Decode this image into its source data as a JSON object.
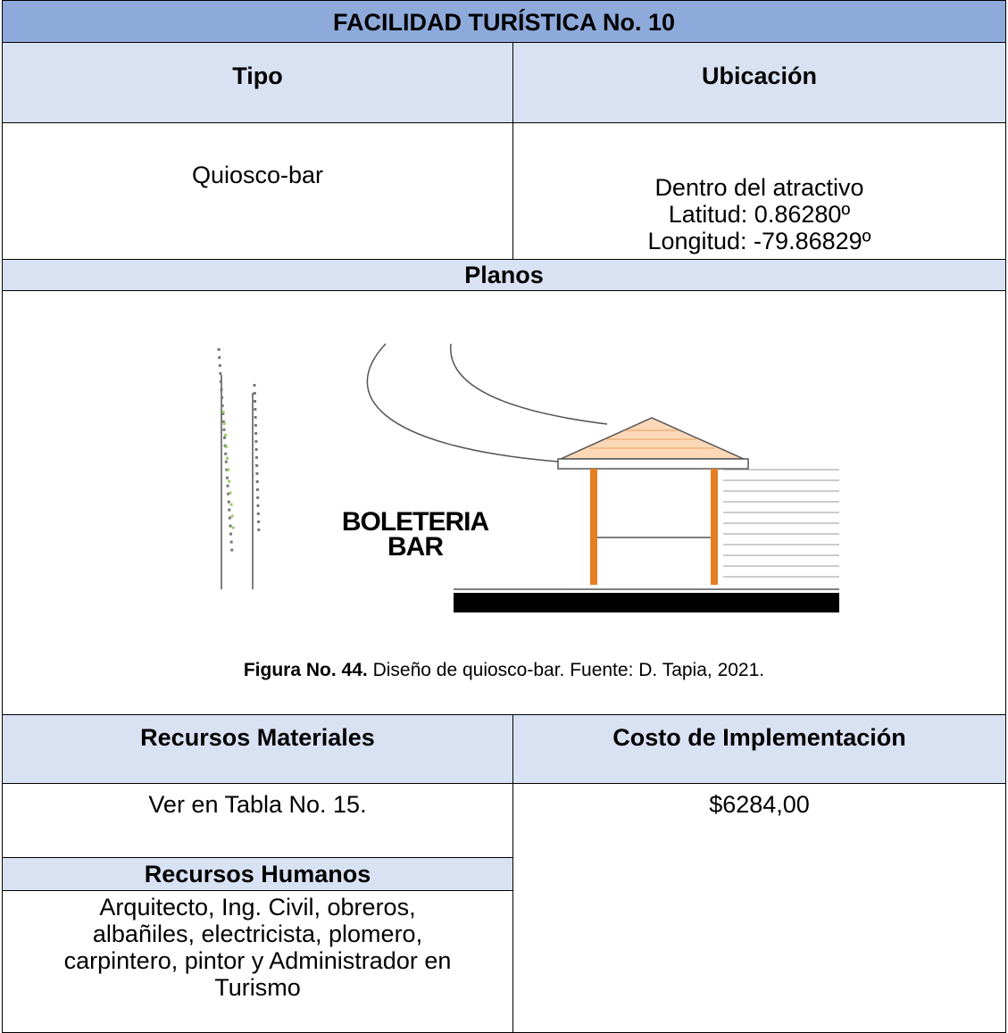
{
  "title": "FACILIDAD TURÍSTICA No. 10",
  "headers": {
    "tipo": "Tipo",
    "ubicacion": "Ubicación"
  },
  "tipo": "Quiosco-bar",
  "ubicacion": [
    "Dentro del atractivo",
    "Latitud: 0.86280º",
    "Longitud: -79.86829º"
  ],
  "planos": {
    "header": "Planos",
    "drawing_labels": [
      "BOLETERIA",
      "BAR"
    ],
    "caption": {
      "label": "Figura No. 44.",
      "text": "Diseño de quiosco-bar. Fuente: D. Tapia, 2021."
    }
  },
  "recursos_materiales": {
    "header": "Recursos Materiales",
    "value": "Ver en Tabla No. 15."
  },
  "costo": {
    "header": "Costo de Implementación",
    "value": "$6284,00"
  },
  "recursos_humanos": {
    "header": "Recursos Humanos",
    "lines": [
      "Arquitecto, Ing. Civil, obreros,",
      "albañiles, electricista, plomero,",
      "carpintero, pintor y Administrador en",
      "Turismo"
    ]
  }
}
